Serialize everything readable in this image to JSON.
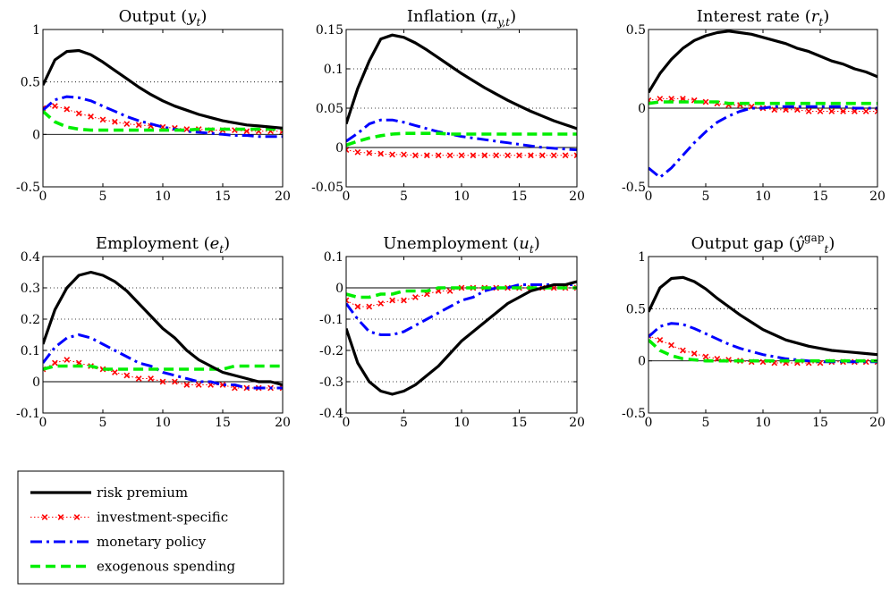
{
  "series_styles": [
    {
      "key": "risk",
      "color": "#000000",
      "style": "solid"
    },
    {
      "key": "invest",
      "color": "#ff0000",
      "style": "dotted-x"
    },
    {
      "key": "mon",
      "color": "#0000ff",
      "style": "dashdot"
    },
    {
      "key": "exo",
      "color": "#00ee00",
      "style": "dashed"
    }
  ],
  "legend": {
    "items": [
      "risk premium",
      "investment-specific",
      "monetary policy",
      "exogenous spending"
    ]
  },
  "chart_data": [
    {
      "type": "line",
      "title": "Output (y_t)",
      "title_parts": [
        [
          "Output (",
          "n"
        ],
        [
          "y",
          "i"
        ],
        [
          "t",
          "sub"
        ],
        [
          ")",
          "n"
        ]
      ],
      "xlim": [
        0,
        20
      ],
      "ylim": [
        -0.5,
        1
      ],
      "xticks": [
        0,
        5,
        10,
        15,
        20
      ],
      "xtick_labels": [
        "0",
        "5",
        "10",
        "15",
        "20"
      ],
      "yticks": [
        -0.5,
        0,
        0.5,
        1
      ],
      "ytick_labels": [
        "-0.5",
        "0",
        "0.5",
        "1"
      ],
      "grid": "dotted",
      "x": [
        0,
        1,
        2,
        3,
        4,
        5,
        6,
        7,
        8,
        9,
        10,
        11,
        12,
        13,
        14,
        15,
        16,
        17,
        18,
        19,
        20
      ],
      "series": [
        {
          "values": [
            0.47,
            0.71,
            0.79,
            0.8,
            0.76,
            0.69,
            0.61,
            0.53,
            0.45,
            0.38,
            0.32,
            0.27,
            0.23,
            0.19,
            0.16,
            0.13,
            0.11,
            0.09,
            0.08,
            0.07,
            0.06
          ]
        },
        {
          "values": [
            0.25,
            0.27,
            0.24,
            0.2,
            0.17,
            0.14,
            0.12,
            0.1,
            0.09,
            0.08,
            0.07,
            0.06,
            0.05,
            0.05,
            0.04,
            0.04,
            0.04,
            0.03,
            0.03,
            0.03,
            0.03
          ]
        },
        {
          "values": [
            0.23,
            0.33,
            0.36,
            0.35,
            0.32,
            0.27,
            0.22,
            0.17,
            0.13,
            0.1,
            0.07,
            0.05,
            0.03,
            0.02,
            0.01,
            0.0,
            -0.01,
            -0.01,
            -0.02,
            -0.02,
            -0.02
          ]
        },
        {
          "values": [
            0.22,
            0.12,
            0.07,
            0.05,
            0.04,
            0.04,
            0.04,
            0.04,
            0.04,
            0.04,
            0.04,
            0.04,
            0.04,
            0.05,
            0.05,
            0.05,
            0.05,
            0.05,
            0.05,
            0.05,
            0.05
          ]
        }
      ]
    },
    {
      "type": "line",
      "title": "Inflation (π_{y,t})",
      "title_parts": [
        [
          "Inflation (",
          "n"
        ],
        [
          "π",
          "i"
        ],
        [
          "y,t",
          "sub"
        ],
        [
          ")",
          "n"
        ]
      ],
      "xlim": [
        0,
        20
      ],
      "ylim": [
        -0.05,
        0.15
      ],
      "xticks": [
        0,
        5,
        10,
        15,
        20
      ],
      "xtick_labels": [
        "0",
        "5",
        "10",
        "15",
        "20"
      ],
      "yticks": [
        -0.05,
        0,
        0.05,
        0.1,
        0.15
      ],
      "ytick_labels": [
        "-0.05",
        "0",
        "0.05",
        "0.1",
        "0.15"
      ],
      "grid": "dotted",
      "x": [
        0,
        1,
        2,
        3,
        4,
        5,
        6,
        7,
        8,
        9,
        10,
        11,
        12,
        13,
        14,
        15,
        16,
        17,
        18,
        19,
        20
      ],
      "series": [
        {
          "values": [
            0.03,
            0.075,
            0.11,
            0.138,
            0.143,
            0.14,
            0.133,
            0.124,
            0.114,
            0.104,
            0.094,
            0.085,
            0.076,
            0.068,
            0.06,
            0.053,
            0.046,
            0.04,
            0.034,
            0.029,
            0.024
          ]
        },
        {
          "values": [
            -0.003,
            -0.006,
            -0.007,
            -0.008,
            -0.009,
            -0.009,
            -0.01,
            -0.01,
            -0.01,
            -0.01,
            -0.01,
            -0.01,
            -0.01,
            -0.01,
            -0.01,
            -0.01,
            -0.01,
            -0.01,
            -0.01,
            -0.01,
            -0.01
          ]
        },
        {
          "values": [
            0.008,
            0.018,
            0.03,
            0.035,
            0.035,
            0.032,
            0.028,
            0.024,
            0.02,
            0.017,
            0.014,
            0.012,
            0.01,
            0.008,
            0.006,
            0.004,
            0.002,
            0.0,
            -0.001,
            -0.002,
            -0.003
          ]
        },
        {
          "values": [
            0.003,
            0.008,
            0.012,
            0.015,
            0.017,
            0.018,
            0.018,
            0.018,
            0.018,
            0.017,
            0.017,
            0.017,
            0.017,
            0.017,
            0.017,
            0.017,
            0.017,
            0.017,
            0.017,
            0.017,
            0.017
          ]
        }
      ]
    },
    {
      "type": "line",
      "title": "Interest rate (r_t)",
      "title_parts": [
        [
          "Interest rate (",
          "n"
        ],
        [
          "r",
          "i"
        ],
        [
          "t",
          "sub"
        ],
        [
          ")",
          "n"
        ]
      ],
      "xlim": [
        0,
        20
      ],
      "ylim": [
        -0.5,
        0.5
      ],
      "xticks": [
        0,
        5,
        10,
        15,
        20
      ],
      "xtick_labels": [
        "0",
        "5",
        "10",
        "15",
        "20"
      ],
      "yticks": [
        -0.5,
        0,
        0.5
      ],
      "ytick_labels": [
        "-0.5",
        "0",
        "0.5"
      ],
      "grid": "dotted",
      "x": [
        0,
        1,
        2,
        3,
        4,
        5,
        6,
        7,
        8,
        9,
        10,
        11,
        12,
        13,
        14,
        15,
        16,
        17,
        18,
        19,
        20
      ],
      "series": [
        {
          "values": [
            0.1,
            0.22,
            0.31,
            0.38,
            0.43,
            0.46,
            0.48,
            0.49,
            0.48,
            0.47,
            0.45,
            0.43,
            0.41,
            0.38,
            0.36,
            0.33,
            0.3,
            0.28,
            0.25,
            0.23,
            0.2
          ]
        },
        {
          "values": [
            0.05,
            0.06,
            0.06,
            0.06,
            0.05,
            0.04,
            0.03,
            0.02,
            0.02,
            0.01,
            0.0,
            -0.01,
            -0.01,
            -0.01,
            -0.02,
            -0.02,
            -0.02,
            -0.02,
            -0.02,
            -0.02,
            -0.02
          ]
        },
        {
          "values": [
            -0.38,
            -0.44,
            -0.38,
            -0.3,
            -0.22,
            -0.15,
            -0.09,
            -0.05,
            -0.02,
            0.0,
            0.0,
            0.01,
            0.01,
            0.01,
            0.01,
            0.01,
            0.01,
            0.01,
            0.0,
            0.0,
            0.0
          ]
        },
        {
          "values": [
            0.03,
            0.04,
            0.04,
            0.04,
            0.04,
            0.04,
            0.04,
            0.03,
            0.03,
            0.03,
            0.03,
            0.03,
            0.03,
            0.03,
            0.03,
            0.03,
            0.03,
            0.03,
            0.03,
            0.03,
            0.03
          ]
        }
      ]
    },
    {
      "type": "line",
      "title": "Employment (e_t)",
      "title_parts": [
        [
          "Employment (",
          "n"
        ],
        [
          "e",
          "i"
        ],
        [
          "t",
          "sub"
        ],
        [
          ")",
          "n"
        ]
      ],
      "xlim": [
        0,
        20
      ],
      "ylim": [
        -0.1,
        0.4
      ],
      "xticks": [
        0,
        5,
        10,
        15,
        20
      ],
      "xtick_labels": [
        "0",
        "5",
        "10",
        "15",
        "20"
      ],
      "yticks": [
        -0.1,
        0,
        0.1,
        0.2,
        0.3,
        0.4
      ],
      "ytick_labels": [
        "-0.1",
        "0",
        "0.1",
        "0.2",
        "0.3",
        "0.4"
      ],
      "grid": "dotted",
      "x": [
        0,
        1,
        2,
        3,
        4,
        5,
        6,
        7,
        8,
        9,
        10,
        11,
        12,
        13,
        14,
        15,
        16,
        17,
        18,
        19,
        20
      ],
      "series": [
        {
          "values": [
            0.12,
            0.23,
            0.3,
            0.34,
            0.35,
            0.34,
            0.32,
            0.29,
            0.25,
            0.21,
            0.17,
            0.14,
            0.1,
            0.07,
            0.05,
            0.03,
            0.02,
            0.01,
            0.0,
            0.0,
            -0.01
          ]
        },
        {
          "values": [
            0.04,
            0.06,
            0.07,
            0.06,
            0.05,
            0.04,
            0.03,
            0.02,
            0.01,
            0.01,
            0.0,
            0.0,
            -0.01,
            -0.01,
            -0.01,
            -0.01,
            -0.02,
            -0.02,
            -0.02,
            -0.02,
            -0.02
          ]
        },
        {
          "values": [
            0.06,
            0.11,
            0.14,
            0.15,
            0.14,
            0.12,
            0.1,
            0.08,
            0.06,
            0.05,
            0.03,
            0.02,
            0.01,
            0.0,
            0.0,
            -0.01,
            -0.01,
            -0.02,
            -0.02,
            -0.02,
            -0.02
          ]
        },
        {
          "values": [
            0.04,
            0.05,
            0.05,
            0.05,
            0.05,
            0.04,
            0.04,
            0.04,
            0.04,
            0.04,
            0.04,
            0.04,
            0.04,
            0.04,
            0.04,
            0.04,
            0.05,
            0.05,
            0.05,
            0.05,
            0.05
          ]
        }
      ]
    },
    {
      "type": "line",
      "title": "Unemployment (u_t)",
      "title_parts": [
        [
          "Unemployment (",
          "n"
        ],
        [
          "u",
          "i"
        ],
        [
          "t",
          "sub"
        ],
        [
          ")",
          "n"
        ]
      ],
      "xlim": [
        0,
        20
      ],
      "ylim": [
        -0.4,
        0.1
      ],
      "xticks": [
        0,
        5,
        10,
        15,
        20
      ],
      "xtick_labels": [
        "0",
        "5",
        "10",
        "15",
        "20"
      ],
      "yticks": [
        -0.4,
        -0.3,
        -0.2,
        -0.1,
        0,
        0.1
      ],
      "ytick_labels": [
        "-0.4",
        "-0.3",
        "-0.2",
        "-0.1",
        "0",
        "0.1"
      ],
      "grid": "dotted",
      "x": [
        0,
        1,
        2,
        3,
        4,
        5,
        6,
        7,
        8,
        9,
        10,
        11,
        12,
        13,
        14,
        15,
        16,
        17,
        18,
        19,
        20
      ],
      "series": [
        {
          "values": [
            -0.13,
            -0.24,
            -0.3,
            -0.33,
            -0.34,
            -0.33,
            -0.31,
            -0.28,
            -0.25,
            -0.21,
            -0.17,
            -0.14,
            -0.11,
            -0.08,
            -0.05,
            -0.03,
            -0.01,
            0.0,
            0.01,
            0.01,
            0.02
          ]
        },
        {
          "values": [
            -0.04,
            -0.06,
            -0.06,
            -0.05,
            -0.04,
            -0.04,
            -0.03,
            -0.02,
            -0.01,
            -0.01,
            0.0,
            0.0,
            0.0,
            0.0,
            0.0,
            0.0,
            0.0,
            0.0,
            0.0,
            0.0,
            0.0
          ]
        },
        {
          "values": [
            -0.05,
            -0.1,
            -0.14,
            -0.15,
            -0.15,
            -0.14,
            -0.12,
            -0.1,
            -0.08,
            -0.06,
            -0.04,
            -0.03,
            -0.01,
            0.0,
            0.0,
            0.01,
            0.01,
            0.01,
            0.01,
            0.01,
            0.01
          ]
        },
        {
          "values": [
            -0.02,
            -0.03,
            -0.03,
            -0.02,
            -0.02,
            -0.01,
            -0.01,
            -0.01,
            0.0,
            0.0,
            0.0,
            0.0,
            0.0,
            0.0,
            0.0,
            0.0,
            0.0,
            0.0,
            0.0,
            0.0,
            0.0
          ]
        }
      ]
    },
    {
      "type": "line",
      "title": "Output gap (ŷ_t^gap)",
      "title_parts": [
        [
          "Output gap (",
          "n"
        ],
        [
          "ŷ",
          "i"
        ],
        [
          "gap",
          "sup"
        ],
        [
          "t",
          "sub"
        ],
        [
          ")",
          "n"
        ]
      ],
      "xlim": [
        0,
        20
      ],
      "ylim": [
        -0.5,
        1
      ],
      "xticks": [
        0,
        5,
        10,
        15,
        20
      ],
      "xtick_labels": [
        "0",
        "5",
        "10",
        "15",
        "20"
      ],
      "yticks": [
        -0.5,
        0,
        0.5,
        1
      ],
      "ytick_labels": [
        "-0.5",
        "0",
        "0.5",
        "1"
      ],
      "grid": "dotted",
      "x": [
        0,
        1,
        2,
        3,
        4,
        5,
        6,
        7,
        8,
        9,
        10,
        11,
        12,
        13,
        14,
        15,
        16,
        17,
        18,
        19,
        20
      ],
      "series": [
        {
          "values": [
            0.47,
            0.7,
            0.79,
            0.8,
            0.76,
            0.69,
            0.6,
            0.52,
            0.44,
            0.37,
            0.3,
            0.25,
            0.2,
            0.17,
            0.14,
            0.12,
            0.1,
            0.09,
            0.08,
            0.07,
            0.06
          ]
        },
        {
          "values": [
            0.24,
            0.2,
            0.15,
            0.1,
            0.07,
            0.04,
            0.02,
            0.01,
            0.0,
            -0.01,
            -0.01,
            -0.02,
            -0.02,
            -0.02,
            -0.02,
            -0.02,
            -0.01,
            -0.01,
            -0.01,
            -0.01,
            -0.01
          ]
        },
        {
          "values": [
            0.23,
            0.33,
            0.36,
            0.35,
            0.31,
            0.26,
            0.21,
            0.16,
            0.12,
            0.09,
            0.06,
            0.04,
            0.02,
            0.01,
            0.0,
            -0.01,
            -0.01,
            -0.01,
            -0.01,
            -0.01,
            -0.01
          ]
        },
        {
          "values": [
            0.2,
            0.1,
            0.05,
            0.02,
            0.01,
            0.0,
            0.0,
            0.0,
            0.0,
            0.0,
            0.0,
            0.0,
            0.0,
            0.0,
            0.0,
            0.0,
            0.0,
            0.0,
            0.0,
            0.0,
            0.0
          ]
        }
      ]
    }
  ]
}
